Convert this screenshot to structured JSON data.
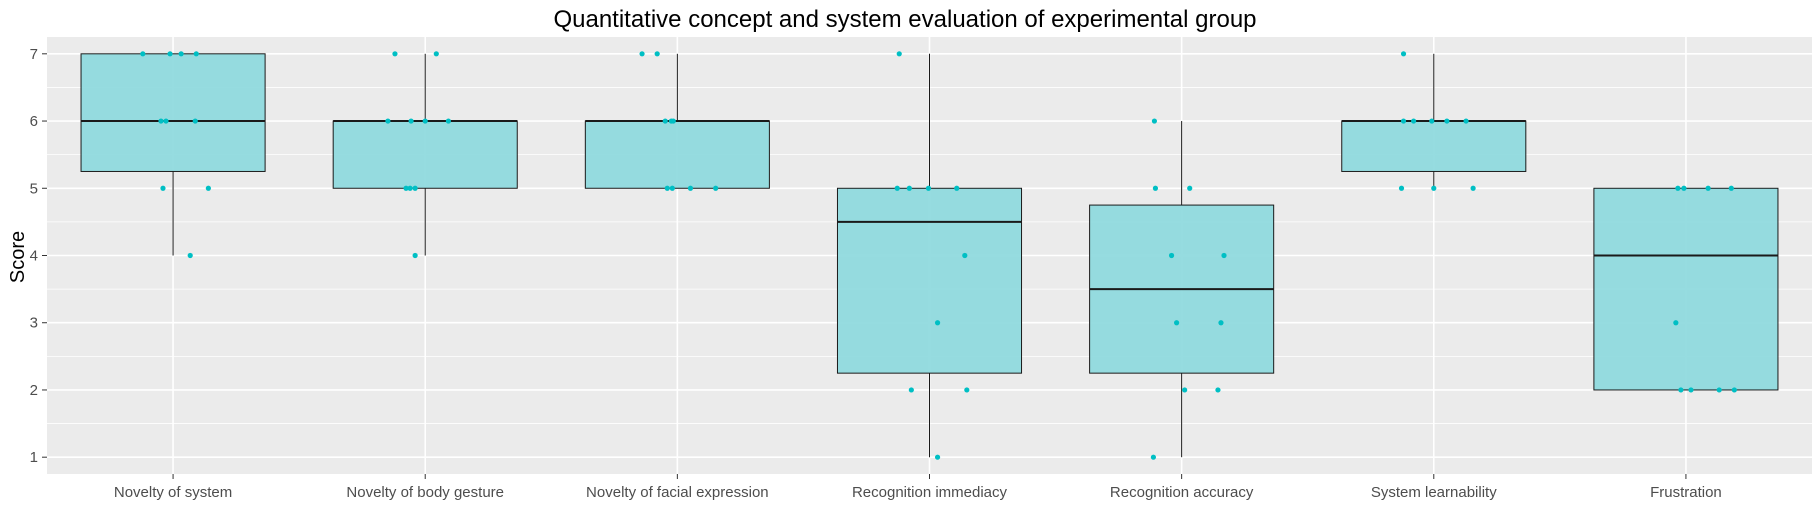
{
  "chart_data": {
    "type": "boxplot",
    "title": "Quantitative concept and system evaluation of experimental group",
    "xlabel": "",
    "ylabel": "Score",
    "ylim": [
      0.75,
      7.25
    ],
    "yticks": [
      1,
      2,
      3,
      4,
      5,
      6,
      7
    ],
    "grid": true,
    "legend": "none",
    "colors": {
      "panel_bg": "#ebebeb",
      "grid": "#ffffff",
      "box_fill": "#8dd9dd",
      "box_stroke": "#1a1a1a",
      "point": "#00bfc4"
    },
    "categories": [
      "Novelty of system",
      "Novelty of body gesture",
      "Novelty of facial expression",
      "Recognition immediacy",
      "Recognition accuracy",
      "System learnability",
      "Frustration"
    ],
    "boxes": [
      {
        "q1": 5.25,
        "median": 6,
        "q3": 7,
        "whisker_low": 4,
        "whisker_high": 7
      },
      {
        "q1": 5,
        "median": 6,
        "q3": 6,
        "whisker_low": 4,
        "whisker_high": 7
      },
      {
        "q1": 5,
        "median": 6,
        "q3": 6,
        "whisker_low": 5,
        "whisker_high": 7
      },
      {
        "q1": 2.25,
        "median": 4.5,
        "q3": 5,
        "whisker_low": 1,
        "whisker_high": 7
      },
      {
        "q1": 2.25,
        "median": 3.5,
        "q3": 4.75,
        "whisker_low": 1,
        "whisker_high": 6
      },
      {
        "q1": 5.25,
        "median": 6,
        "q3": 6,
        "whisker_low": 5,
        "whisker_high": 7
      },
      {
        "q1": 2,
        "median": 4,
        "q3": 5,
        "whisker_low": 2,
        "whisker_high": 5
      }
    ],
    "points": [
      [
        [
          -0.3,
          7
        ],
        [
          -0.03,
          7
        ],
        [
          0.08,
          7
        ],
        [
          0.23,
          7
        ],
        [
          -0.12,
          6
        ],
        [
          -0.07,
          6
        ],
        [
          0.22,
          6
        ],
        [
          -0.1,
          5
        ],
        [
          0.35,
          5
        ],
        [
          0.17,
          4
        ]
      ],
      [
        [
          -0.3,
          7
        ],
        [
          0.11,
          7
        ],
        [
          -0.37,
          6
        ],
        [
          -0.14,
          6
        ],
        [
          0,
          6
        ],
        [
          0.23,
          6
        ],
        [
          -0.19,
          5
        ],
        [
          -0.15,
          5
        ],
        [
          -0.1,
          5
        ],
        [
          -0.1,
          4
        ]
      ],
      [
        [
          -0.35,
          7
        ],
        [
          -0.2,
          7
        ],
        [
          -0.12,
          6
        ],
        [
          -0.06,
          6
        ],
        [
          -0.04,
          6
        ],
        [
          -0.1,
          5
        ],
        [
          -0.05,
          5
        ],
        [
          0.13,
          5
        ],
        [
          0.38,
          5
        ]
      ],
      [
        [
          -0.3,
          7
        ],
        [
          -0.32,
          5
        ],
        [
          -0.2,
          5
        ],
        [
          -0.01,
          5
        ],
        [
          0.27,
          5
        ],
        [
          0.35,
          4
        ],
        [
          0.08,
          3
        ],
        [
          -0.18,
          2
        ],
        [
          0.37,
          2
        ],
        [
          0.08,
          1
        ]
      ],
      [
        [
          -0.27,
          6
        ],
        [
          -0.26,
          5
        ],
        [
          0.08,
          5
        ],
        [
          -0.1,
          4
        ],
        [
          0.42,
          4
        ],
        [
          -0.05,
          3
        ],
        [
          0.39,
          3
        ],
        [
          0.03,
          2
        ],
        [
          0.36,
          2
        ],
        [
          -0.28,
          1
        ]
      ],
      [
        [
          -0.3,
          7
        ],
        [
          -0.3,
          6
        ],
        [
          -0.2,
          6
        ],
        [
          -0.02,
          6
        ],
        [
          0.13,
          6
        ],
        [
          0.32,
          6
        ],
        [
          -0.32,
          5
        ],
        [
          0,
          5
        ],
        [
          0.39,
          5
        ]
      ],
      [
        [
          -0.08,
          5
        ],
        [
          -0.02,
          5
        ],
        [
          0.22,
          5
        ],
        [
          0.45,
          5
        ],
        [
          -0.1,
          3
        ],
        [
          -0.05,
          2
        ],
        [
          0.05,
          2
        ],
        [
          0.33,
          2
        ],
        [
          0.48,
          2
        ]
      ]
    ]
  }
}
